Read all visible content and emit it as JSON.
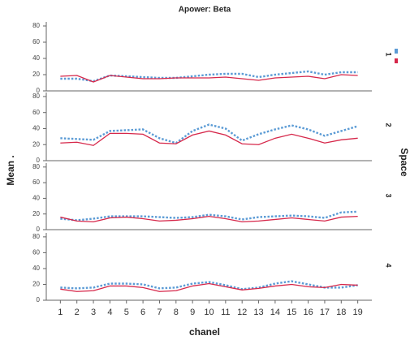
{
  "chart_data": {
    "type": "line",
    "title": "Apower: Beta",
    "xlabel": "chanel",
    "ylabel": "Mean .",
    "facet_label": "Space",
    "x": [
      1,
      2,
      3,
      4,
      5,
      6,
      7,
      8,
      9,
      10,
      11,
      12,
      13,
      14,
      15,
      16,
      17,
      18,
      19
    ],
    "xlim": [
      0,
      20
    ],
    "xticks": [
      1,
      2,
      3,
      4,
      5,
      6,
      7,
      8,
      9,
      10,
      11,
      12,
      13,
      14,
      15,
      16,
      17,
      18,
      19
    ],
    "ylim": [
      0,
      85
    ],
    "yticks": [
      0,
      20,
      40,
      60,
      80
    ],
    "series_styles": [
      {
        "color": "#5b9bd5",
        "dashed": true
      },
      {
        "color": "#d6274a",
        "dashed": false
      }
    ],
    "panels": [
      {
        "label": "1",
        "series": [
          {
            "color": "#5b9bd5",
            "values": [
              15,
              15,
              12,
              19,
              18,
              17,
              16,
              16,
              18,
              20,
              21,
              21,
              17,
              20,
              22,
              24,
              20,
              23,
              23
            ]
          },
          {
            "color": "#d6274a",
            "values": [
              18,
              19,
              11,
              19,
              17,
              15,
              15,
              16,
              16,
              16,
              17,
              15,
              13,
              16,
              17,
              18,
              15,
              20,
              19
            ]
          }
        ]
      },
      {
        "label": "2",
        "series": [
          {
            "color": "#5b9bd5",
            "values": [
              28,
              27,
              26,
              37,
              38,
              39,
              28,
              22,
              37,
              45,
              40,
              25,
              33,
              39,
              44,
              39,
              31,
              37,
              43
            ]
          },
          {
            "color": "#d6274a",
            "values": [
              22,
              23,
              19,
              34,
              34,
              33,
              22,
              21,
              32,
              37,
              32,
              21,
              20,
              28,
              33,
              28,
              22,
              26,
              28
            ]
          }
        ]
      },
      {
        "label": "3",
        "series": [
          {
            "color": "#5b9bd5",
            "values": [
              14,
              12,
              14,
              17,
              17,
              17,
              16,
              15,
              16,
              19,
              17,
              13,
              16,
              17,
              18,
              17,
              15,
              22,
              23
            ]
          },
          {
            "color": "#d6274a",
            "values": [
              16,
              11,
              10,
              15,
              16,
              14,
              11,
              12,
              14,
              17,
              14,
              10,
              11,
              13,
              15,
              13,
              11,
              16,
              17
            ]
          }
        ]
      },
      {
        "label": "4",
        "series": [
          {
            "color": "#5b9bd5",
            "values": [
              16,
              15,
              16,
              21,
              21,
              20,
              15,
              16,
              21,
              23,
              19,
              14,
              16,
              21,
              24,
              20,
              16,
              16,
              19
            ]
          },
          {
            "color": "#d6274a",
            "values": [
              14,
              11,
              12,
              18,
              18,
              16,
              11,
              12,
              18,
              21,
              17,
              13,
              15,
              18,
              20,
              17,
              16,
              20,
              19
            ]
          }
        ]
      }
    ]
  }
}
